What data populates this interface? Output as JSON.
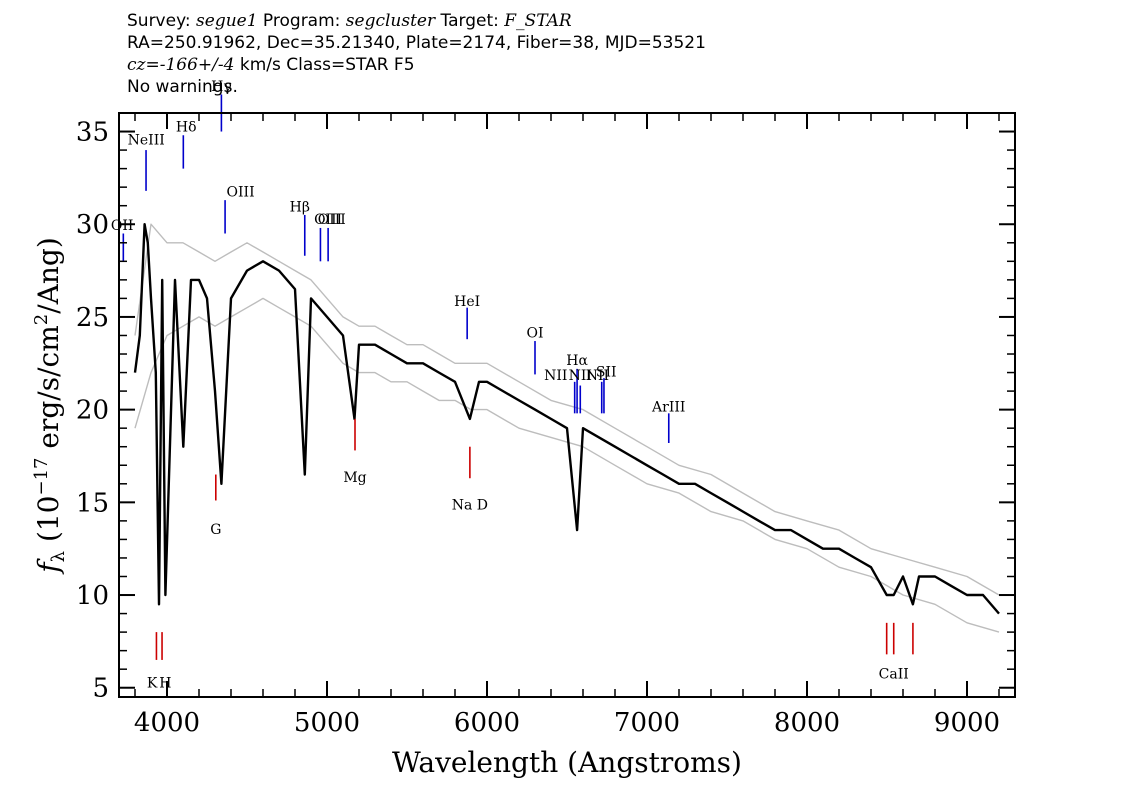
{
  "header": {
    "survey_label": "Survey: ",
    "survey": "segue1",
    "program_label": " Program: ",
    "program": "segcluster",
    "target_label": " Target: ",
    "target": "F_STAR",
    "line2": "RA=250.91962, Dec=35.21340, Plate=2174, Fiber=38, MJD=53521",
    "cz_prefix": "cz=",
    "cz_value": "-166+/-4",
    "cz_suffix": " km/s Class=STAR F5",
    "line4": "No warnings."
  },
  "chart_data": {
    "type": "line",
    "xlabel": "Wavelength (Angstroms)",
    "ylabel_parts": {
      "flux": "f",
      "sub": "λ",
      "pre": " (10",
      "exp": "−17",
      "mid": " erg/s/cm",
      "exp2": "2",
      "post": "/Ang)"
    },
    "xlim": [
      3700,
      9300
    ],
    "ylim": [
      4.5,
      36
    ],
    "x_ticks": [
      4000,
      5000,
      6000,
      7000,
      8000,
      9000
    ],
    "y_ticks": [
      5,
      10,
      15,
      20,
      25,
      30,
      35
    ],
    "x_tick_labels": [
      "4000",
      "5000",
      "6000",
      "7000",
      "8000",
      "9000"
    ],
    "y_tick_labels": [
      "5",
      "10",
      "15",
      "20",
      "25",
      "30",
      "35"
    ],
    "series": [
      {
        "color": "#000000",
        "x": [
          3800,
          3830,
          3860,
          3880,
          3900,
          3930,
          3950,
          3970,
          3990,
          4050,
          4102,
          4150,
          4200,
          4250,
          4300,
          4340,
          4400,
          4500,
          4600,
          4700,
          4800,
          4861,
          4900,
          5000,
          5100,
          5172,
          5200,
          5300,
          5400,
          5500,
          5600,
          5700,
          5800,
          5893,
          5950,
          6000,
          6100,
          6200,
          6300,
          6400,
          6500,
          6563,
          6600,
          6700,
          6800,
          6900,
          7000,
          7100,
          7200,
          7300,
          7400,
          7500,
          7600,
          7700,
          7800,
          7900,
          8000,
          8100,
          8200,
          8300,
          8400,
          8498,
          8542,
          8600,
          8662,
          8700,
          8800,
          8900,
          9000,
          9100,
          9200
        ],
        "y": [
          22,
          24,
          30,
          29,
          26,
          22,
          9.5,
          27,
          10,
          27,
          18,
          27,
          27,
          26,
          21,
          16,
          26,
          27.5,
          28,
          27.5,
          26.5,
          16.5,
          26,
          25,
          24,
          19.5,
          23.5,
          23.5,
          23,
          22.5,
          22.5,
          22,
          21.5,
          19.5,
          21.5,
          21.5,
          21,
          20.5,
          20,
          19.5,
          19,
          13.5,
          19,
          18.5,
          18,
          17.5,
          17,
          16.5,
          16,
          16,
          15.5,
          15,
          14.5,
          14,
          13.5,
          13.5,
          13,
          12.5,
          12.5,
          12,
          11.5,
          10,
          10,
          11,
          9.5,
          11,
          11,
          10.5,
          10,
          10,
          9
        ]
      },
      {
        "color": "#bdbdbd",
        "x": [
          3800,
          3900,
          4000,
          4100,
          4200,
          4300,
          4400,
          4500,
          4600,
          4700,
          4800,
          4900,
          5000,
          5100,
          5200,
          5300,
          5400,
          5500,
          5600,
          5700,
          5800,
          5900,
          6000,
          6200,
          6400,
          6600,
          6800,
          7000,
          7200,
          7400,
          7600,
          7800,
          8000,
          8200,
          8400,
          8600,
          8800,
          9000,
          9200
        ],
        "y": [
          24,
          30,
          29,
          29,
          28.5,
          28,
          28.5,
          29,
          28.5,
          28,
          27.5,
          27,
          26,
          25,
          24.5,
          24.5,
          24,
          23.5,
          23.5,
          23,
          22.5,
          22.5,
          22.5,
          21.5,
          20.5,
          20,
          19,
          18,
          17,
          16.5,
          15.5,
          14.5,
          14,
          13.5,
          12.5,
          12,
          11.5,
          11,
          10
        ]
      },
      {
        "color": "#bdbdbd",
        "x": [
          3800,
          3900,
          4000,
          4100,
          4200,
          4300,
          4400,
          4500,
          4600,
          4700,
          4800,
          4900,
          5000,
          5100,
          5200,
          5300,
          5400,
          5500,
          5600,
          5700,
          5800,
          5900,
          6000,
          6200,
          6400,
          6600,
          6800,
          7000,
          7200,
          7400,
          7600,
          7800,
          8000,
          8200,
          8400,
          8600,
          8800,
          9000,
          9200
        ],
        "y": [
          19,
          22,
          24,
          24.5,
          25,
          24.5,
          25,
          25.5,
          26,
          25.5,
          25,
          24.5,
          23.5,
          22.5,
          22,
          22,
          21.5,
          21.5,
          21,
          20.5,
          20.5,
          20,
          20,
          19,
          18.5,
          18,
          17,
          16,
          15.5,
          14.5,
          14,
          13,
          12.5,
          11.5,
          11,
          10,
          9.5,
          8.5,
          8
        ]
      }
    ],
    "emission_lines": [
      {
        "label": "NeIII",
        "wave": 3869,
        "y1": 31.8,
        "y2": 34.0,
        "lx": 3870,
        "ly": 34.3,
        "color": "#0000cc"
      },
      {
        "label": "Hδ",
        "wave": 4102,
        "y1": 33.0,
        "y2": 34.8,
        "lx": 4120,
        "ly": 35.0,
        "color": "#0000cc"
      },
      {
        "label": "Hγ",
        "wave": 4340,
        "y1": 35.0,
        "y2": 37.0,
        "lx": 4340,
        "ly": 37.2,
        "color": "#0000cc"
      },
      {
        "label": "OIII",
        "wave": 4363,
        "y1": 29.5,
        "y2": 31.3,
        "lx": 4460,
        "ly": 31.5,
        "color": "#0000cc"
      },
      {
        "label": "Hβ",
        "wave": 4861,
        "y1": 28.3,
        "y2": 30.5,
        "lx": 4830,
        "ly": 30.7,
        "color": "#0000cc"
      },
      {
        "label": "OIII",
        "wave": 4959,
        "y1": 28.0,
        "y2": 29.8,
        "lx": 5030,
        "ly": 30.0,
        "color": "#0000cc"
      },
      {
        "label": "OIII",
        "wave": 5007,
        "y1": 28.0,
        "y2": 29.8,
        "lx": 5007,
        "ly": 30.0,
        "color": "#0000cc"
      },
      {
        "label": "OII",
        "wave": 3727,
        "y1": 28.0,
        "y2": 29.5,
        "lx": 3720,
        "ly": 29.7,
        "color": "#0000cc"
      },
      {
        "label": "HeI",
        "wave": 5876,
        "y1": 23.8,
        "y2": 25.5,
        "lx": 5876,
        "ly": 25.6,
        "color": "#0000cc"
      },
      {
        "label": "OI",
        "wave": 6300,
        "y1": 21.9,
        "y2": 23.7,
        "lx": 6300,
        "ly": 23.9,
        "color": "#0000cc"
      },
      {
        "label": "Hα",
        "wave": 6563,
        "y1": 19.8,
        "y2": 22.2,
        "lx": 6563,
        "ly": 22.4,
        "color": "#0000cc"
      },
      {
        "label": "NII",
        "wave": 6548,
        "y1": 19.8,
        "y2": 21.5,
        "lx": 6430,
        "ly": 21.6,
        "color": "#0000cc"
      },
      {
        "label": "NII",
        "wave": 6583,
        "y1": 19.8,
        "y2": 21.3,
        "lx": 6583,
        "ly": 21.6,
        "color": "#0000cc"
      },
      {
        "label": "NII",
        "wave": 6717,
        "y1": 19.8,
        "y2": 21.5,
        "lx": 6690,
        "ly": 21.6,
        "color": "#0000cc"
      },
      {
        "label": "SII",
        "wave": 6731,
        "y1": 19.8,
        "y2": 21.7,
        "lx": 6745,
        "ly": 21.8,
        "color": "#0000cc"
      },
      {
        "label": "ArIII",
        "wave": 7136,
        "y1": 18.2,
        "y2": 19.8,
        "lx": 7136,
        "ly": 19.9,
        "color": "#0000cc"
      }
    ],
    "absorption_lines": [
      {
        "label": "K",
        "wave": 3934,
        "y1": 6.5,
        "y2": 8.0,
        "lx": 3907,
        "ly": 5.0,
        "color": "#cc0000"
      },
      {
        "label": "H",
        "wave": 3969,
        "y1": 6.5,
        "y2": 8.0,
        "lx": 3990,
        "ly": 5.0,
        "color": "#cc0000"
      },
      {
        "label": "G",
        "wave": 4305,
        "y1": 15.1,
        "y2": 16.5,
        "lx": 4305,
        "ly": 13.3,
        "color": "#cc0000"
      },
      {
        "label": "Mg",
        "wave": 5175,
        "y1": 17.8,
        "y2": 19.5,
        "lx": 5175,
        "ly": 16.1,
        "color": "#cc0000"
      },
      {
        "label": "Na D",
        "wave": 5893,
        "y1": 16.3,
        "y2": 18.0,
        "lx": 5893,
        "ly": 14.6,
        "color": "#cc0000"
      },
      {
        "label": "",
        "wave": 8498,
        "y1": 6.8,
        "y2": 8.5,
        "lx": 8498,
        "ly": 5.5,
        "color": "#cc0000"
      },
      {
        "label": "CaII",
        "wave": 8542,
        "y1": 6.8,
        "y2": 8.5,
        "lx": 8542,
        "ly": 5.5,
        "color": "#cc0000"
      },
      {
        "label": "",
        "wave": 8662,
        "y1": 6.8,
        "y2": 8.5,
        "lx": 8662,
        "ly": 5.5,
        "color": "#cc0000"
      }
    ]
  }
}
